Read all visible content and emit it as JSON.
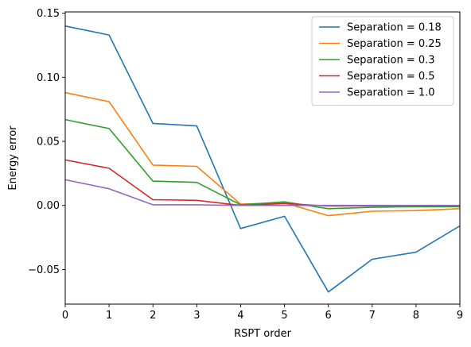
{
  "chart_data": {
    "type": "line",
    "xlabel": "RSPT order",
    "ylabel": "Energy error",
    "xlim": [
      0,
      9
    ],
    "ylim": [
      -0.077,
      0.151
    ],
    "xticks": [
      0,
      1,
      2,
      3,
      4,
      5,
      6,
      7,
      8,
      9
    ],
    "xtick_labels": [
      "0",
      "1",
      "2",
      "3",
      "4",
      "5",
      "6",
      "7",
      "8",
      "9"
    ],
    "yticks": [
      -0.05,
      0.0,
      0.05,
      0.1,
      0.15
    ],
    "ytick_labels": [
      "−0.05",
      "0.00",
      "0.05",
      "0.10",
      "0.15"
    ],
    "grid": false,
    "legend_position": "top-right",
    "x": [
      0,
      1,
      2,
      3,
      4,
      5,
      6,
      7,
      8,
      9
    ],
    "series": [
      {
        "name": "Separation = 0.18",
        "color": "#1f77b4",
        "values": [
          0.14,
          0.133,
          0.064,
          0.062,
          -0.018,
          -0.0085,
          -0.0675,
          -0.042,
          -0.0365,
          -0.016
        ]
      },
      {
        "name": "Separation = 0.25",
        "color": "#ff7f0e",
        "values": [
          0.088,
          0.081,
          0.0315,
          0.0305,
          0.001,
          0.002,
          -0.008,
          -0.0045,
          -0.004,
          -0.0025
        ]
      },
      {
        "name": "Separation = 0.3",
        "color": "#2ca02c",
        "values": [
          0.067,
          0.06,
          0.019,
          0.018,
          0.0005,
          0.0028,
          -0.0025,
          -0.0015,
          -0.001,
          -0.001
        ]
      },
      {
        "name": "Separation = 0.5",
        "color": "#d62728",
        "values": [
          0.0355,
          0.029,
          0.0045,
          0.004,
          0.0,
          0.0015,
          -0.0005,
          -0.0003,
          -0.0002,
          -0.0001
        ]
      },
      {
        "name": "Separation = 1.0",
        "color": "#9467bd",
        "values": [
          0.02,
          0.013,
          0.0005,
          0.0005,
          0.0,
          0.0,
          0.0,
          0.0,
          0.0,
          0.0
        ]
      }
    ]
  }
}
